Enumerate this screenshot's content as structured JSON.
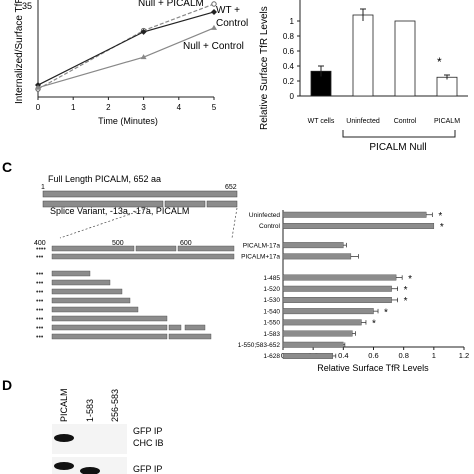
{
  "panelB_top": {
    "ylabel": "Internalized/Surface TfR",
    "xlabel": "Time (Minutes)",
    "x_ticks": [
      "0",
      "1",
      "2",
      "3",
      "4",
      "5"
    ],
    "y_tick_top": "35",
    "legend": [
      "Null + PICALM",
      "WT +",
      "Control",
      "Null +  Control"
    ]
  },
  "panelB_right": {
    "ylabel": "Relative Surface TfR Levels",
    "y_ticks": [
      "1",
      "0.8",
      "0.6",
      "0.4",
      "0.2",
      "0"
    ],
    "categories": [
      "WT cells",
      "Uninfected",
      "Control",
      "PICALM"
    ],
    "group_label": "PICALM Null",
    "star": "*"
  },
  "panelC": {
    "letter": "C",
    "full_length_label": "Full Length PICALM, 652 aa",
    "splice_label": "Splice Variant, -13a, -17a, PICALM",
    "ruler_start": "1",
    "ruler_end": "652",
    "zoom_ticks": [
      "400",
      "500",
      "600"
    ],
    "xlabel": "Relative Surface TfR Levels",
    "x_ticks": [
      "0",
      "0.2",
      "0.4",
      "0.6",
      "0.8",
      "1",
      "1.2"
    ],
    "star": "*"
  },
  "panelD": {
    "letter": "D",
    "lanes": [
      "PICALM",
      "1-583",
      "256-583"
    ],
    "blot1_label_1": "GFP IP",
    "blot1_label_2": "CHC IB",
    "blot2_label": "GFP IP"
  },
  "chart_data": [
    {
      "type": "line",
      "title": "",
      "xlabel": "Time (Minutes)",
      "ylabel": "Internalized/Surface TfR",
      "x": [
        0,
        3,
        5
      ],
      "xlim": [
        0,
        5
      ],
      "series": [
        {
          "name": "Null + PICALM",
          "values": [
            3,
            25,
            35
          ]
        },
        {
          "name": "WT + Control",
          "values": [
            4.5,
            24.5,
            32
          ]
        },
        {
          "name": "Null +  Control",
          "values": [
            3.5,
            15,
            26
          ]
        }
      ]
    },
    {
      "type": "bar",
      "ylabel": "Relative Surface TfR Levels",
      "categories": [
        "WT cells",
        "Uninfected",
        "Control",
        "PICALM"
      ],
      "values": [
        0.33,
        1.08,
        1.0,
        0.25
      ],
      "errors": [
        0.07,
        0.08,
        0,
        0.03
      ],
      "colors": [
        "#000000",
        "#ffffff",
        "#ffffff",
        "#ffffff"
      ],
      "ylim": [
        0,
        1.2
      ]
    },
    {
      "type": "bar",
      "orientation": "horizontal",
      "xlabel": "Relative Surface TfR Levels",
      "xlim": [
        0,
        1.2
      ],
      "categories": [
        "Uninfected",
        "Control",
        "PICALM-17a",
        "PICALM+17a",
        "1-485",
        "1-520",
        "1-530",
        "1-540",
        "1-550",
        "1-583",
        "1-550;583-652",
        "1-628"
      ],
      "values": [
        0.95,
        1.0,
        0.4,
        0.45,
        0.75,
        0.72,
        0.72,
        0.6,
        0.52,
        0.46,
        0.4,
        0.33
      ],
      "errors": [
        0.04,
        0,
        0.02,
        0.05,
        0.04,
        0.04,
        0.04,
        0.03,
        0.03,
        0.02,
        0.01,
        0.02
      ],
      "significant": [
        true,
        true,
        false,
        false,
        true,
        true,
        true,
        true,
        true,
        false,
        false,
        false
      ]
    }
  ]
}
